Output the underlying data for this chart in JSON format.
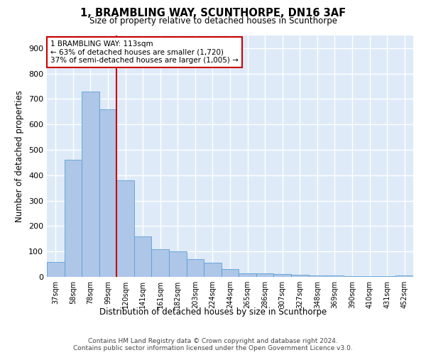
{
  "title": "1, BRAMBLING WAY, SCUNTHORPE, DN16 3AF",
  "subtitle": "Size of property relative to detached houses in Scunthorpe",
  "xlabel": "Distribution of detached houses by size in Scunthorpe",
  "ylabel": "Number of detached properties",
  "categories": [
    "37sqm",
    "58sqm",
    "78sqm",
    "99sqm",
    "120sqm",
    "141sqm",
    "161sqm",
    "182sqm",
    "203sqm",
    "224sqm",
    "244sqm",
    "265sqm",
    "286sqm",
    "307sqm",
    "327sqm",
    "348sqm",
    "369sqm",
    "390sqm",
    "410sqm",
    "431sqm",
    "452sqm"
  ],
  "values": [
    60,
    460,
    730,
    660,
    380,
    160,
    110,
    100,
    70,
    55,
    30,
    15,
    15,
    10,
    8,
    5,
    5,
    3,
    2,
    2,
    5
  ],
  "bar_color": "#aec6e8",
  "bar_edge_color": "#5a9fd4",
  "background_color": "#deeaf7",
  "grid_color": "#ffffff",
  "vline_x": 3.5,
  "vline_color": "#cc0000",
  "annotation_text": "1 BRAMBLING WAY: 113sqm\n← 63% of detached houses are smaller (1,720)\n37% of semi-detached houses are larger (1,005) →",
  "annotation_box_color": "#ffffff",
  "annotation_box_edge": "#cc0000",
  "ylim": [
    0,
    950
  ],
  "yticks": [
    0,
    100,
    200,
    300,
    400,
    500,
    600,
    700,
    800,
    900
  ],
  "footer_line1": "Contains HM Land Registry data © Crown copyright and database right 2024.",
  "footer_line2": "Contains public sector information licensed under the Open Government Licence v3.0."
}
